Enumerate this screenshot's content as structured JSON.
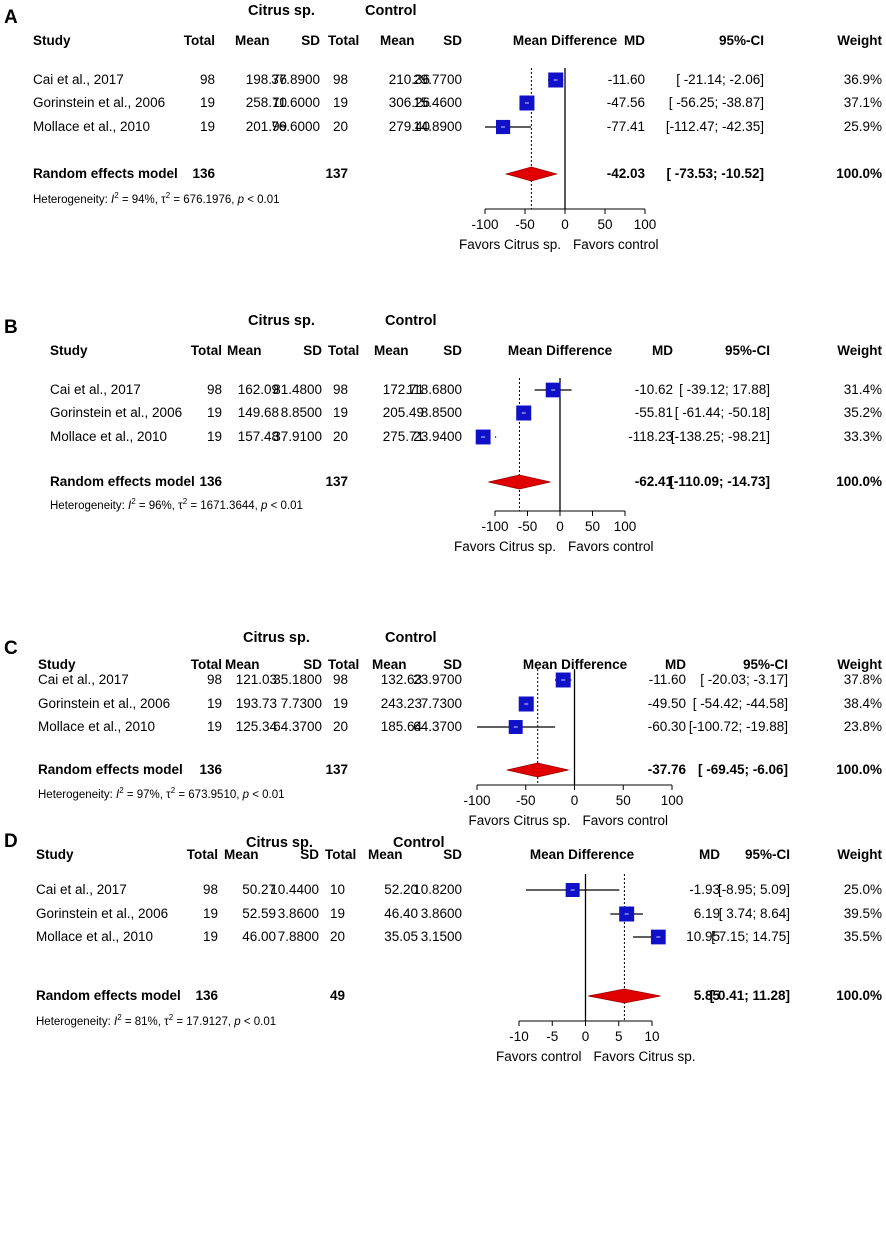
{
  "chart_data": [
    {
      "type": "forest",
      "panel_label": "A",
      "group_labels": [
        "Citrus sp.",
        "Control"
      ],
      "headers": [
        "Study",
        "Total",
        "Mean",
        "SD",
        "Total",
        "Mean",
        "SD",
        "Mean Difference",
        "MD",
        "95%-CI",
        "Weight"
      ],
      "studies": [
        {
          "study": "Cai et al., 2017",
          "e_total": "98",
          "e_mean": "198.76",
          "e_sd": "37.8900",
          "c_total": "98",
          "c_mean": "210.36",
          "c_sd": "29.7700",
          "md": "-11.60",
          "ci": "[ -21.14;  -2.06]",
          "weight": "36.9%",
          "md_val": -11.6,
          "lo": -21.14,
          "hi": -2.06,
          "w": 36.9
        },
        {
          "study": "Gorinstein et al., 2006",
          "e_total": "19",
          "e_mean": "258.70",
          "e_sd": "11.6000",
          "c_total": "19",
          "c_mean": "306.26",
          "c_sd": "15.4600",
          "md": "-47.56",
          "ci": "[ -56.25; -38.87]",
          "weight": "37.1%",
          "md_val": -47.56,
          "lo": -56.25,
          "hi": -38.87,
          "w": 37.1
        },
        {
          "study": "Mollace et al., 2010",
          "e_total": "19",
          "e_mean": "201.99",
          "e_sd": "76.6000",
          "c_total": "20",
          "c_mean": "279.40",
          "c_sd": "14.8900",
          "md": "-77.41",
          "ci": "[-112.47; -42.35]",
          "weight": "25.9%",
          "md_val": -77.41,
          "lo": -112.47,
          "hi": -42.35,
          "w": 25.9
        }
      ],
      "pooled": {
        "label": "Random effects model",
        "e_total": "136",
        "c_total": "137",
        "md": "-42.03",
        "ci": "[ -73.53; -10.52]",
        "weight": "100.0%",
        "md_val": -42.03,
        "lo": -73.53,
        "hi": -10.52
      },
      "heterogeneity": {
        "prefix": "Heterogeneity: ",
        "i2_sym": "I",
        "i2_sup": "2",
        "i2_val": " = 94%, ",
        "tau_sym": "τ",
        "tau_sup": "2",
        "tau_val": " = 676.1976, ",
        "p_sym": "p",
        "p_val": " < 0.01"
      },
      "xlim": [
        -100,
        100
      ],
      "ticks": [
        "-100",
        "-50",
        "0",
        "50",
        "100"
      ],
      "tick_values": [
        -100,
        -50,
        0,
        50,
        100
      ],
      "favors_left": "Favors Citrus sp.",
      "favors_right": "Favors control"
    },
    {
      "type": "forest",
      "panel_label": "B",
      "group_labels": [
        "Citrus sp.",
        "Control"
      ],
      "headers": [
        "Study",
        "Total",
        "Mean",
        "SD",
        "Total",
        "Mean",
        "SD",
        "Mean Difference",
        "MD",
        "95%-CI",
        "Weight"
      ],
      "studies": [
        {
          "study": "Cai et al., 2017",
          "e_total": "98",
          "e_mean": "162.09",
          "e_sd": "81.4800",
          "c_total": "98",
          "c_mean": "172.71",
          "c_sd": "118.6800",
          "md": "-10.62",
          "ci": "[ -39.12;  17.88]",
          "weight": "31.4%",
          "md_val": -10.62,
          "lo": -39.12,
          "hi": 17.88,
          "w": 31.4
        },
        {
          "study": "Gorinstein et al., 2006",
          "e_total": "19",
          "e_mean": "149.68",
          "e_sd": "8.8500",
          "c_total": "19",
          "c_mean": "205.49",
          "c_sd": "8.8500",
          "md": "-55.81",
          "ci": "[ -61.44; -50.18]",
          "weight": "35.2%",
          "md_val": -55.81,
          "lo": -61.44,
          "hi": -50.18,
          "w": 35.2
        },
        {
          "study": "Mollace et al., 2010",
          "e_total": "19",
          "e_mean": "157.48",
          "e_sd": "37.9100",
          "c_total": "20",
          "c_mean": "275.71",
          "c_sd": "23.9400",
          "md": "-118.23",
          "ci": "[-138.25; -98.21]",
          "weight": "33.3%",
          "md_val": -118.23,
          "lo": -138.25,
          "hi": -98.21,
          "w": 33.3
        }
      ],
      "pooled": {
        "label": "Random effects model",
        "e_total": "136",
        "c_total": "137",
        "md": "-62.41",
        "ci": "[-110.09; -14.73]",
        "weight": "100.0%",
        "md_val": -62.41,
        "lo": -110.09,
        "hi": -14.73
      },
      "heterogeneity": {
        "prefix": "Heterogeneity: ",
        "i2_sym": "I",
        "i2_sup": "2",
        "i2_val": " = 96%, ",
        "tau_sym": "τ",
        "tau_sup": "2",
        "tau_val": " = 1671.3644, ",
        "p_sym": "p",
        "p_val": " < 0.01"
      },
      "xlim": [
        -100,
        100
      ],
      "ticks": [
        "-100",
        "-50",
        "0",
        "50",
        "100"
      ],
      "tick_values": [
        -100,
        -50,
        0,
        50,
        100
      ],
      "favors_left": "Favors Citrus sp.",
      "favors_right": "Favors control"
    },
    {
      "type": "forest",
      "panel_label": "C",
      "group_labels": [
        "Citrus sp.",
        "Control"
      ],
      "headers": [
        "Study",
        "Total",
        "Mean",
        "SD",
        "Total",
        "Mean",
        "SD",
        "Mean Difference",
        "MD",
        "95%-CI",
        "Weight"
      ],
      "studies": [
        {
          "study": "Cai et al., 2017",
          "e_total": "98",
          "e_mean": "121.03",
          "e_sd": "35.1800",
          "c_total": "98",
          "c_mean": "132.63",
          "c_sd": "23.9700",
          "md": "-11.60",
          "ci": "[ -20.03;  -3.17]",
          "weight": "37.8%",
          "md_val": -11.6,
          "lo": -20.03,
          "hi": -3.17,
          "w": 37.8
        },
        {
          "study": "Gorinstein et al., 2006",
          "e_total": "19",
          "e_mean": "193.73",
          "e_sd": "7.7300",
          "c_total": "19",
          "c_mean": "243.23",
          "c_sd": "7.7300",
          "md": "-49.50",
          "ci": "[ -54.42; -44.58]",
          "weight": "38.4%",
          "md_val": -49.5,
          "lo": -54.42,
          "hi": -44.58,
          "w": 38.4
        },
        {
          "study": "Mollace et al., 2010",
          "e_total": "19",
          "e_mean": "125.34",
          "e_sd": "64.3700",
          "c_total": "20",
          "c_mean": "185.64",
          "c_sd": "64.3700",
          "md": "-60.30",
          "ci": "[-100.72; -19.88]",
          "weight": "23.8%",
          "md_val": -60.3,
          "lo": -100.72,
          "hi": -19.88,
          "w": 23.8
        }
      ],
      "pooled": {
        "label": "Random effects model",
        "e_total": "136",
        "c_total": "137",
        "md": "-37.76",
        "ci": "[ -69.45;  -6.06]",
        "weight": "100.0%",
        "md_val": -37.76,
        "lo": -69.45,
        "hi": -6.06
      },
      "heterogeneity": {
        "prefix": "Heterogeneity: ",
        "i2_sym": "I",
        "i2_sup": "2",
        "i2_val": " = 97%, ",
        "tau_sym": "τ",
        "tau_sup": "2",
        "tau_val": " = 673.9510, ",
        "p_sym": "p",
        "p_val": " < 0.01"
      },
      "xlim": [
        -100,
        100
      ],
      "ticks": [
        "-100",
        "-50",
        "0",
        "50",
        "100"
      ],
      "tick_values": [
        -100,
        -50,
        0,
        50,
        100
      ],
      "favors_left": "Favors Citrus sp.",
      "favors_right": "Favors control"
    },
    {
      "type": "forest",
      "panel_label": "D",
      "group_labels": [
        "Citrus sp.",
        "Control"
      ],
      "headers": [
        "Study",
        "Total",
        "Mean",
        "SD",
        "Total",
        "Mean",
        "SD",
        "Mean Difference",
        "MD",
        "95%-CI",
        "Weight"
      ],
      "studies": [
        {
          "study": "Cai et al., 2017",
          "e_total": "98",
          "e_mean": "50.27",
          "e_sd": "10.4400",
          "c_total": "10",
          "c_mean": "52.20",
          "c_sd": "10.8200",
          "md": "-1.93",
          "ci": "[-8.95;  5.09]",
          "weight": "25.0%",
          "md_val": -1.93,
          "lo": -8.95,
          "hi": 5.09,
          "w": 25.0
        },
        {
          "study": "Gorinstein et al., 2006",
          "e_total": "19",
          "e_mean": "52.59",
          "e_sd": "3.8600",
          "c_total": "19",
          "c_mean": "46.40",
          "c_sd": "3.8600",
          "md": "6.19",
          "ci": "[ 3.74;  8.64]",
          "weight": "39.5%",
          "md_val": 6.19,
          "lo": 3.74,
          "hi": 8.64,
          "w": 39.5
        },
        {
          "study": "Mollace et al., 2010",
          "e_total": "19",
          "e_mean": "46.00",
          "e_sd": "7.8800",
          "c_total": "20",
          "c_mean": "35.05",
          "c_sd": "3.1500",
          "md": "10.95",
          "ci": "[ 7.15; 14.75]",
          "weight": "35.5%",
          "md_val": 10.95,
          "lo": 7.15,
          "hi": 14.75,
          "w": 35.5
        }
      ],
      "pooled": {
        "label": "Random effects model",
        "e_total": "136",
        "c_total": "49",
        "md": "5.85",
        "ci": "[ 0.41; 11.28]",
        "weight": "100.0%",
        "md_val": 5.85,
        "lo": 0.41,
        "hi": 11.28
      },
      "heterogeneity": {
        "prefix": "Heterogeneity: ",
        "i2_sym": "I",
        "i2_sup": "2",
        "i2_val": " = 81%, ",
        "tau_sym": "τ",
        "tau_sup": "2",
        "tau_val": " = 17.9127, ",
        "p_sym": "p",
        "p_val": " < 0.01"
      },
      "xlim": [
        -10,
        10
      ],
      "ticks": [
        "-10",
        "-5",
        "0",
        "5",
        "10"
      ],
      "tick_values": [
        -10,
        -5,
        0,
        5,
        10
      ],
      "favors_left": "Favors control",
      "favors_right": "Favors Citrus sp."
    }
  ],
  "colors": {
    "square": "#1010c8",
    "diamond": "#e00000",
    "text": "#000000"
  }
}
